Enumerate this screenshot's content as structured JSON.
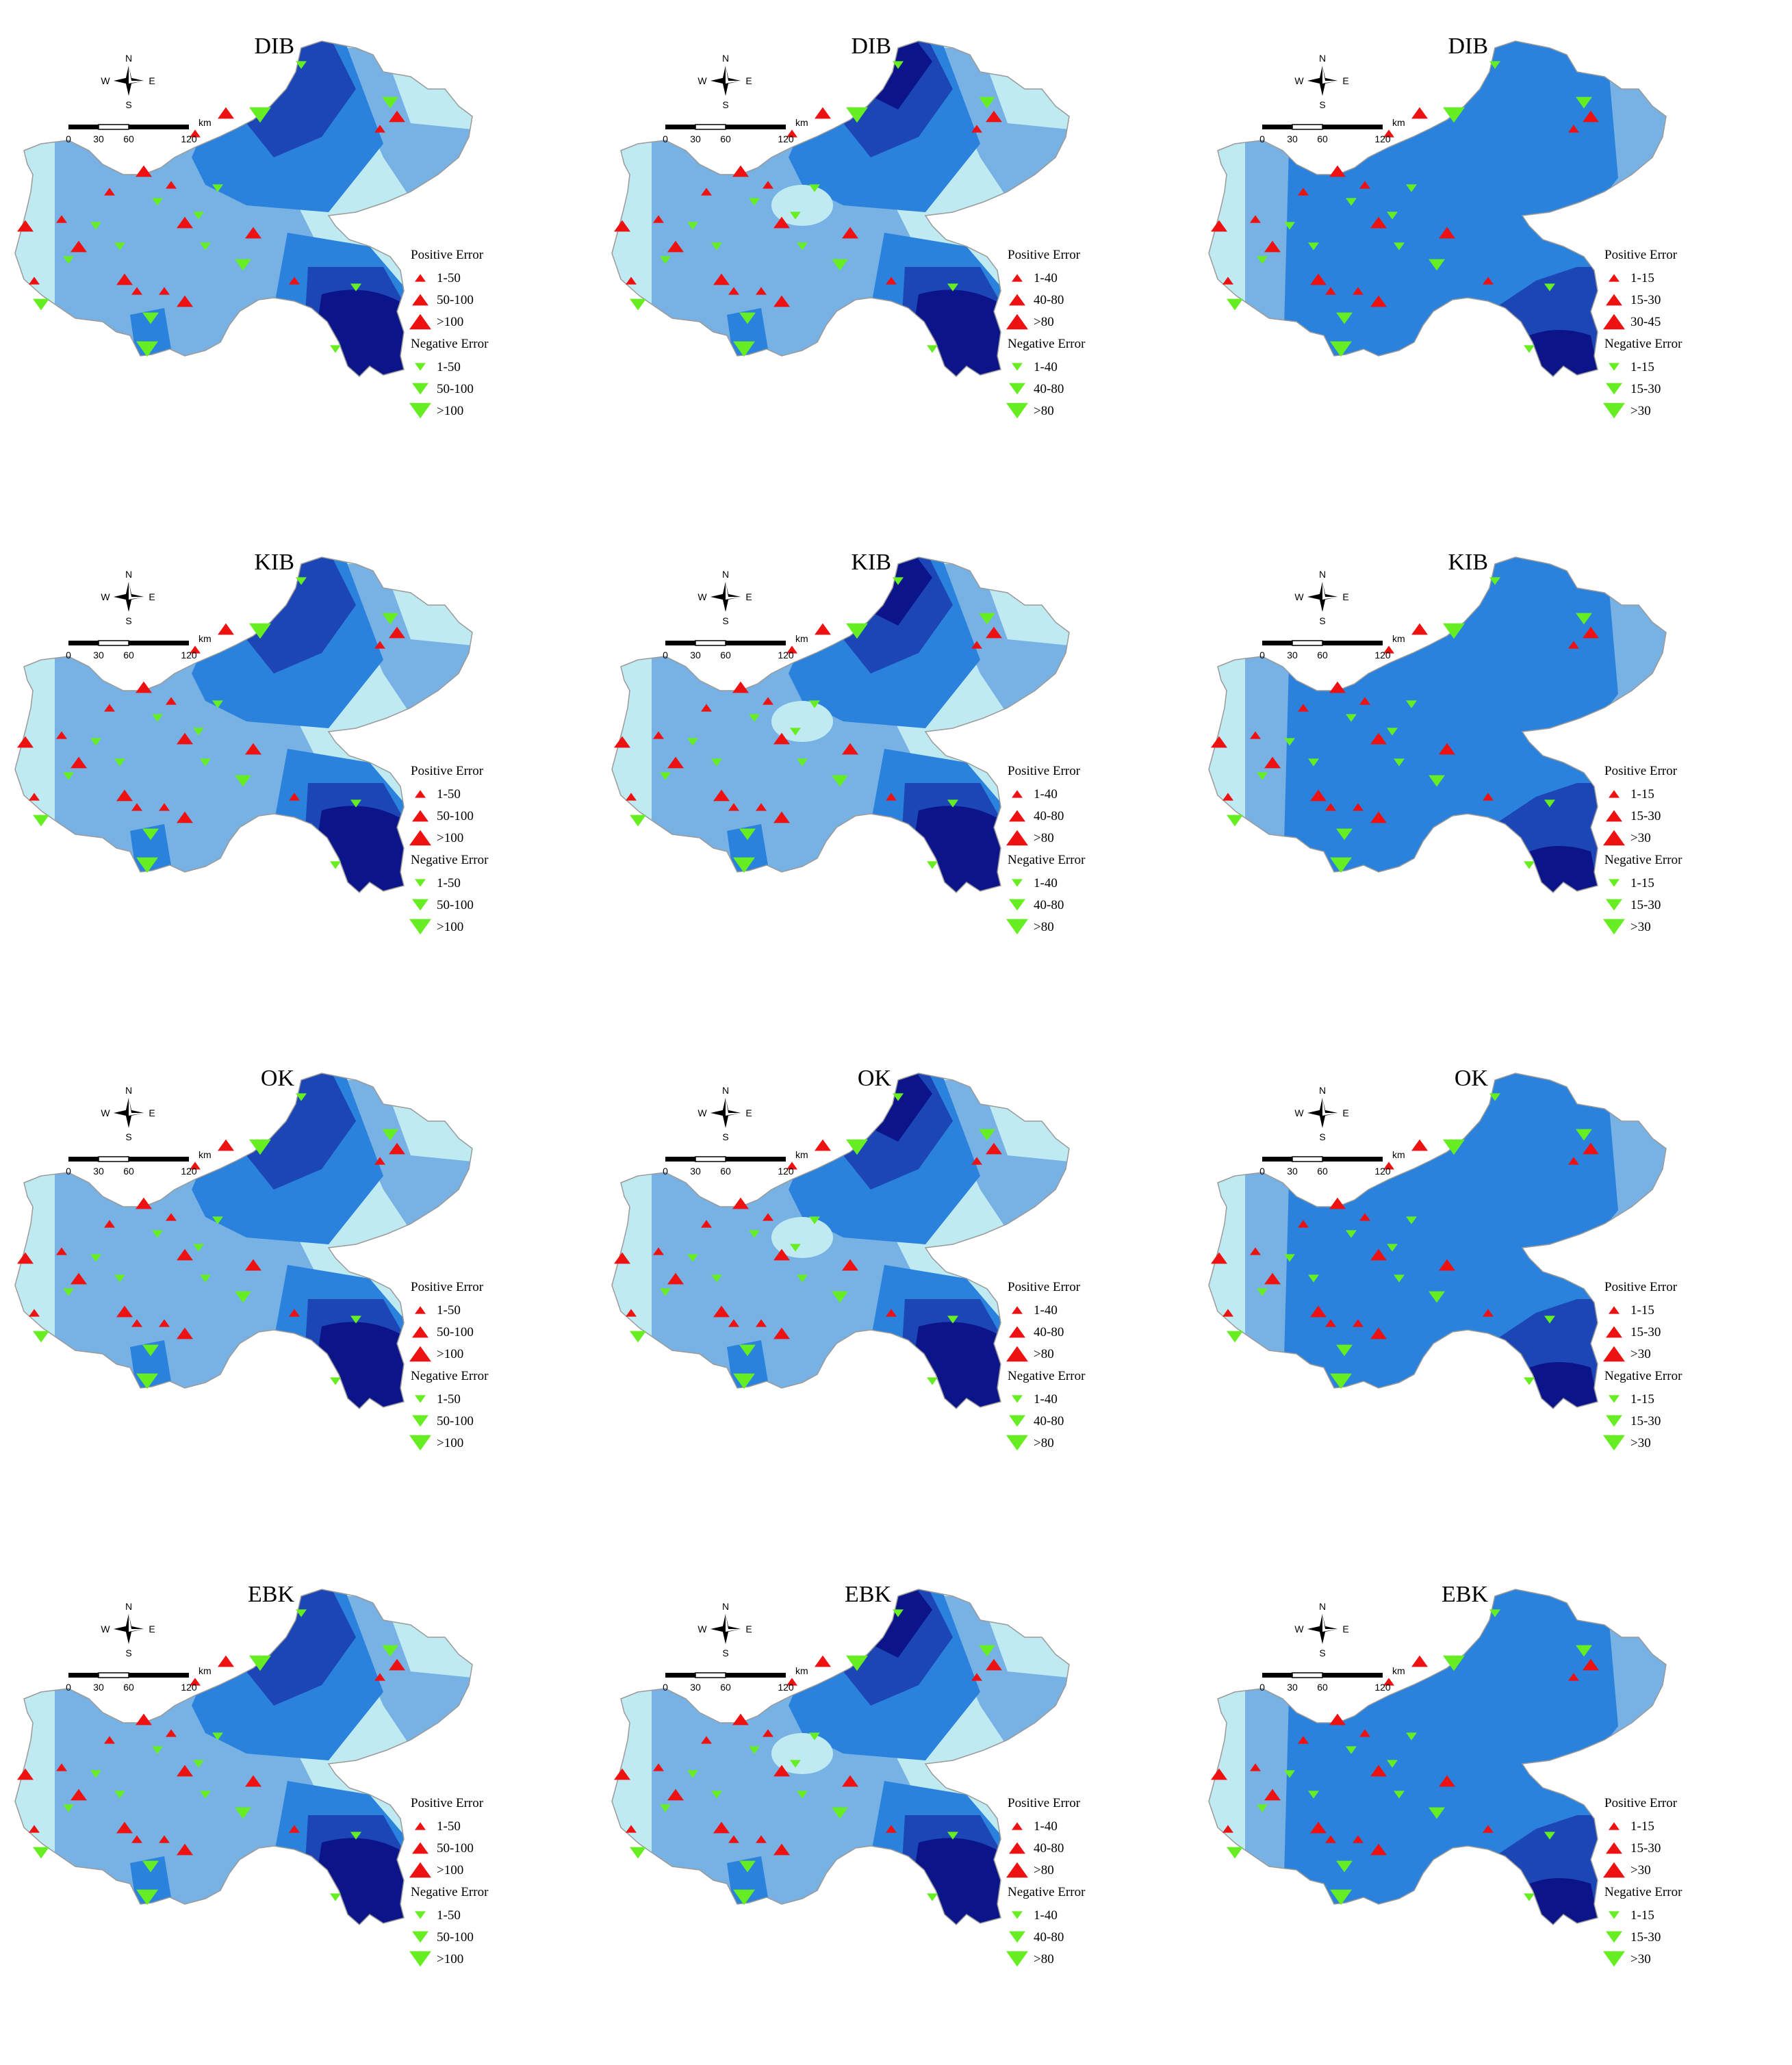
{
  "figure": {
    "colors": {
      "band1": "#bfeaf2",
      "band2": "#78b2e4",
      "band3": "#2a82dc",
      "band4": "#1c46b6",
      "band5": "#0c148a",
      "outline": "#9a9a9a",
      "positive": "#ee1111",
      "negative": "#66ee22"
    },
    "scale_labels": [
      "0",
      "30",
      "60",
      "120"
    ],
    "scale_unit": "km",
    "compass": {
      "n": "N",
      "s": "S",
      "e": "E",
      "w": "W"
    },
    "panels": [
      {
        "method": "DIB",
        "band": "b1",
        "legend": {
          "pos_title": "Positive Error",
          "pos": [
            "1-50",
            "50-100",
            ">100"
          ],
          "neg_title": "Negative Error",
          "neg": [
            "1-50",
            "50-100",
            ">100"
          ]
        }
      },
      {
        "method": "DIB",
        "band": "b2",
        "legend": {
          "pos_title": "Positive Error",
          "pos": [
            "1-40",
            "40-80",
            ">80"
          ],
          "neg_title": "Negative Error",
          "neg": [
            "1-40",
            "40-80",
            ">80"
          ]
        }
      },
      {
        "method": "DIB",
        "band": "b3",
        "legend": {
          "pos_title": "Positive Error",
          "pos": [
            "1-15",
            "15-30",
            "30-45"
          ],
          "neg_title": "Negative Error",
          "neg": [
            "1-15",
            "15-30",
            ">30"
          ]
        }
      },
      {
        "method": "KIB",
        "band": "b1",
        "legend": {
          "pos_title": "Positive Error",
          "pos": [
            "1-50",
            "50-100",
            ">100"
          ],
          "neg_title": "Negative Error",
          "neg": [
            "1-50",
            "50-100",
            ">100"
          ]
        }
      },
      {
        "method": "KIB",
        "band": "b2",
        "legend": {
          "pos_title": "Positive Error",
          "pos": [
            "1-40",
            "40-80",
            ">80"
          ],
          "neg_title": "Negative Error",
          "neg": [
            "1-40",
            "40-80",
            ">80"
          ]
        }
      },
      {
        "method": "KIB",
        "band": "b3",
        "legend": {
          "pos_title": "Positive Error",
          "pos": [
            "1-15",
            "15-30",
            ">30"
          ],
          "neg_title": "Negative Error",
          "neg": [
            "1-15",
            "15-30",
            ">30"
          ]
        }
      },
      {
        "method": "OK",
        "band": "b1",
        "legend": {
          "pos_title": "Positive Error",
          "pos": [
            "1-50",
            "50-100",
            ">100"
          ],
          "neg_title": "Negative Error",
          "neg": [
            "1-50",
            "50-100",
            ">100"
          ]
        }
      },
      {
        "method": "OK",
        "band": "b2",
        "legend": {
          "pos_title": "Positive Error",
          "pos": [
            "1-40",
            "40-80",
            ">80"
          ],
          "neg_title": "Negative Error",
          "neg": [
            "1-40",
            "40-80",
            ">80"
          ]
        }
      },
      {
        "method": "OK",
        "band": "b3",
        "legend": {
          "pos_title": "Positive Error",
          "pos": [
            "1-15",
            "15-30",
            ">30"
          ],
          "neg_title": "Negative Error",
          "neg": [
            "1-15",
            "15-30",
            ">30"
          ]
        }
      },
      {
        "method": "EBK",
        "band": "b1",
        "legend": {
          "pos_title": "Positive Error",
          "pos": [
            "1-50",
            "50-100",
            ">100"
          ],
          "neg_title": "Negative Error",
          "neg": [
            "1-50",
            "50-100",
            ">100"
          ]
        }
      },
      {
        "method": "EBK",
        "band": "b2",
        "legend": {
          "pos_title": "Positive Error",
          "pos": [
            "1-40",
            "40-80",
            ">80"
          ],
          "neg_title": "Negative Error",
          "neg": [
            "1-40",
            "40-80",
            ">80"
          ]
        }
      },
      {
        "method": "EBK",
        "band": "b3",
        "legend": {
          "pos_title": "Positive Error",
          "pos": [
            "1-15",
            "15-30",
            ">30"
          ],
          "neg_title": "Negative Error",
          "neg": [
            "1-15",
            "15-30",
            ">30"
          ]
        }
      }
    ]
  }
}
